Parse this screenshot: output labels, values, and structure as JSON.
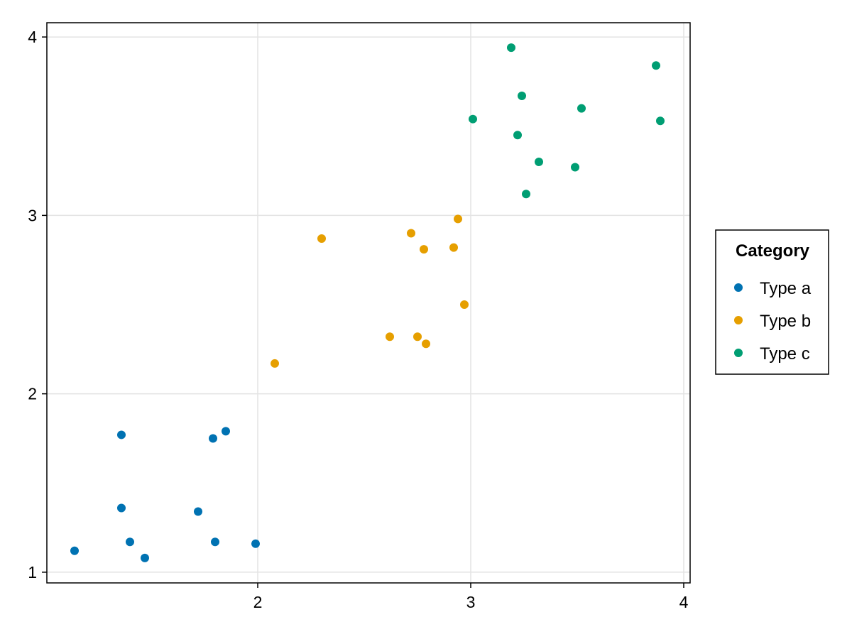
{
  "chart_data": {
    "type": "scatter",
    "title": "",
    "xlabel": "",
    "ylabel": "",
    "xlim": [
      1.01,
      4.03
    ],
    "ylim": [
      0.94,
      4.08
    ],
    "xticks": [
      {
        "value": 2,
        "label": "2"
      },
      {
        "value": 3,
        "label": "3"
      },
      {
        "value": 4,
        "label": "4"
      }
    ],
    "yticks": [
      {
        "value": 1,
        "label": "1"
      },
      {
        "value": 2,
        "label": "2"
      },
      {
        "value": 3,
        "label": "3"
      },
      {
        "value": 4,
        "label": "4"
      }
    ],
    "grid": true,
    "legend": {
      "title": "Category",
      "position": "right",
      "entries": [
        {
          "label": "Type a",
          "color": "#0072b2"
        },
        {
          "label": "Type b",
          "color": "#e69f00"
        },
        {
          "label": "Type c",
          "color": "#009e73"
        }
      ]
    },
    "series": [
      {
        "name": "Type a",
        "color": "#0072b2",
        "points": [
          {
            "x": 1.14,
            "y": 1.12
          },
          {
            "x": 1.47,
            "y": 1.08
          },
          {
            "x": 1.4,
            "y": 1.17
          },
          {
            "x": 1.8,
            "y": 1.17
          },
          {
            "x": 1.99,
            "y": 1.16
          },
          {
            "x": 1.36,
            "y": 1.36
          },
          {
            "x": 1.72,
            "y": 1.34
          },
          {
            "x": 1.36,
            "y": 1.77
          },
          {
            "x": 1.79,
            "y": 1.75
          },
          {
            "x": 1.85,
            "y": 1.79
          }
        ]
      },
      {
        "name": "Type b",
        "color": "#e69f00",
        "points": [
          {
            "x": 2.08,
            "y": 2.17
          },
          {
            "x": 2.62,
            "y": 2.32
          },
          {
            "x": 2.75,
            "y": 2.32
          },
          {
            "x": 2.79,
            "y": 2.28
          },
          {
            "x": 2.97,
            "y": 2.5
          },
          {
            "x": 2.3,
            "y": 2.87
          },
          {
            "x": 2.72,
            "y": 2.9
          },
          {
            "x": 2.78,
            "y": 2.81
          },
          {
            "x": 2.92,
            "y": 2.82
          },
          {
            "x": 2.94,
            "y": 2.98
          }
        ]
      },
      {
        "name": "Type c",
        "color": "#009e73",
        "points": [
          {
            "x": 3.01,
            "y": 3.54
          },
          {
            "x": 3.19,
            "y": 3.94
          },
          {
            "x": 3.22,
            "y": 3.45
          },
          {
            "x": 3.24,
            "y": 3.67
          },
          {
            "x": 3.26,
            "y": 3.12
          },
          {
            "x": 3.32,
            "y": 3.3
          },
          {
            "x": 3.49,
            "y": 3.27
          },
          {
            "x": 3.52,
            "y": 3.6
          },
          {
            "x": 3.87,
            "y": 3.84
          },
          {
            "x": 3.89,
            "y": 3.53
          }
        ]
      }
    ]
  }
}
